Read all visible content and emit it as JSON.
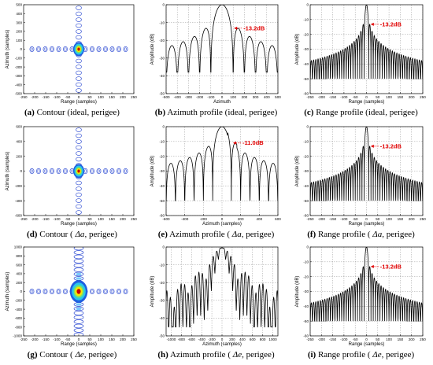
{
  "panels": [
    {
      "letter": "(a)",
      "caption": "Contour (ideal, perigee)"
    },
    {
      "letter": "(b)",
      "caption": "Azimuth profile (ideal, perigee)"
    },
    {
      "letter": "(c)",
      "caption": "Range profile (ideal, perigee)"
    },
    {
      "letter": "(d)",
      "caption": "Contour (",
      "greek": "Δa",
      "caption2": ", perigee)"
    },
    {
      "letter": "(e)",
      "caption": "Azimuth profile (",
      "greek": "Δa",
      "caption2": ", perigee)"
    },
    {
      "letter": "(f)",
      "caption": "Range profile (",
      "greek": "Δa",
      "caption2": ", perigee)"
    },
    {
      "letter": "(g)",
      "caption": "Contour (",
      "greek": "Δe",
      "caption2": ", perigee)"
    },
    {
      "letter": "(h)",
      "caption": "Azimuth profile (",
      "greek": "Δe",
      "caption2": ", perigee)"
    },
    {
      "letter": "(i)",
      "caption": "Range profile (",
      "greek": "Δe",
      "caption2": ", perigee)"
    }
  ],
  "colors": {
    "annotation": "#e00000",
    "profile": "#000000",
    "contour_outer": "#1f3fd0",
    "contour_core": "#f5e600",
    "contour_peak": "#c80000"
  },
  "chart_data": [
    {
      "type": "contour",
      "panel": "a",
      "xlabel": "Range (samples)",
      "ylabel": "Azimuth (samples)",
      "xlim": [
        -250,
        250
      ],
      "ylim": [
        -500,
        500
      ],
      "xticks": [
        -250,
        -200,
        -150,
        -100,
        -50,
        0,
        50,
        100,
        150,
        200,
        250
      ],
      "yticks": [
        500,
        400,
        300,
        200,
        100,
        0,
        -100,
        -200,
        -300,
        -400,
        -500
      ],
      "peak": [
        0,
        0
      ]
    },
    {
      "type": "line",
      "panel": "b",
      "xlabel": "Azimuth",
      "ylabel": "Amplitude (dB)",
      "xlim": [
        -500,
        500
      ],
      "ylim": [
        -50,
        0
      ],
      "xticks": [
        -500,
        -400,
        -300,
        -200,
        -100,
        0,
        100,
        200,
        300,
        400,
        500
      ],
      "yticks": [
        0,
        -10,
        -20,
        -30,
        -40,
        -50
      ],
      "annotation": {
        "text": "-13.2dB",
        "x": 100,
        "y": -13.2
      },
      "sidelobe_spacing": 100,
      "floor": -38
    },
    {
      "type": "line",
      "panel": "c",
      "xlabel": "Range (samples)",
      "ylabel": "Amplitude (dB)",
      "xlim": [
        -250,
        250
      ],
      "ylim": [
        -60,
        0
      ],
      "xticks": [
        -250,
        -200,
        -150,
        -100,
        -50,
        0,
        50,
        100,
        150,
        200,
        250
      ],
      "yticks": [
        0,
        -10,
        -20,
        -30,
        -40,
        -50,
        -60
      ],
      "annotation": {
        "text": "-13.2dB",
        "x": 15,
        "y": -13.2
      },
      "sidelobe_spacing": 10,
      "floor": -50
    },
    {
      "type": "contour",
      "panel": "d",
      "xlabel": "Range (samples)",
      "ylabel": "Azimuth (samples)",
      "xlim": [
        -250,
        250
      ],
      "ylim": [
        -600,
        600
      ],
      "xticks": [
        -250,
        -200,
        -150,
        -100,
        -50,
        0,
        50,
        100,
        150,
        200,
        250
      ],
      "yticks": [
        600,
        400,
        200,
        0,
        -200,
        -400,
        -600
      ],
      "peak": [
        0,
        0
      ]
    },
    {
      "type": "line",
      "panel": "e",
      "xlabel": "Azimuth (samples)",
      "ylabel": "Amplitude (dB)",
      "xlim": [
        -600,
        600
      ],
      "ylim": [
        -60,
        0
      ],
      "xticks": [
        -600,
        -400,
        -200,
        0,
        200,
        400,
        600
      ],
      "yticks": [
        0,
        -10,
        -20,
        -30,
        -40,
        -50,
        -60
      ],
      "annotation": {
        "text": "-11.0dB",
        "x": 110,
        "y": -11.0
      },
      "sidelobe_spacing": 100,
      "floor": -50
    },
    {
      "type": "line",
      "panel": "f",
      "xlabel": "Range (samples)",
      "ylabel": "Amplitude (dB)",
      "xlim": [
        -250,
        250
      ],
      "ylim": [
        -60,
        0
      ],
      "xticks": [
        -250,
        -200,
        -150,
        -100,
        -50,
        0,
        50,
        100,
        150,
        200,
        250
      ],
      "yticks": [
        0,
        -10,
        -20,
        -30,
        -40,
        -50,
        -60
      ],
      "annotation": {
        "text": "-13.2dB",
        "x": 15,
        "y": -13.2
      },
      "sidelobe_spacing": 10,
      "floor": -50
    },
    {
      "type": "contour",
      "panel": "g",
      "xlabel": "Range (samples)",
      "ylabel": "Azimuth (samples)",
      "xlim": [
        -250,
        250
      ],
      "ylim": [
        -1000,
        1000
      ],
      "xticks": [
        -250,
        -200,
        -150,
        -100,
        -50,
        0,
        50,
        100,
        150,
        200,
        250
      ],
      "yticks": [
        1000,
        800,
        600,
        400,
        200,
        0,
        -200,
        -400,
        -600,
        -800,
        -1000
      ],
      "peak": [
        0,
        0
      ]
    },
    {
      "type": "line",
      "panel": "h",
      "xlabel": "Azimuth (samples)",
      "ylabel": "Amplitude (dB)",
      "xlim": [
        -1100,
        1100
      ],
      "ylim": [
        -50,
        0
      ],
      "xticks": [
        -1000,
        -800,
        -600,
        -400,
        -200,
        0,
        200,
        400,
        600,
        800,
        1000
      ],
      "yticks": [
        0,
        -10,
        -20,
        -30,
        -40,
        -50
      ],
      "sidelobe_spacing": 70,
      "floor": -45
    },
    {
      "type": "line",
      "panel": "i",
      "xlabel": "Range (samples)",
      "ylabel": "Amplitude (dB)",
      "xlim": [
        -250,
        250
      ],
      "ylim": [
        -60,
        0
      ],
      "xticks": [
        -250,
        -200,
        -150,
        -100,
        -50,
        0,
        50,
        100,
        150,
        200,
        250
      ],
      "yticks": [
        0,
        -10,
        -20,
        -30,
        -40,
        -50,
        -60
      ],
      "annotation": {
        "text": "-13.2dB",
        "x": 15,
        "y": -13.2
      },
      "sidelobe_spacing": 10,
      "floor": -50
    }
  ]
}
